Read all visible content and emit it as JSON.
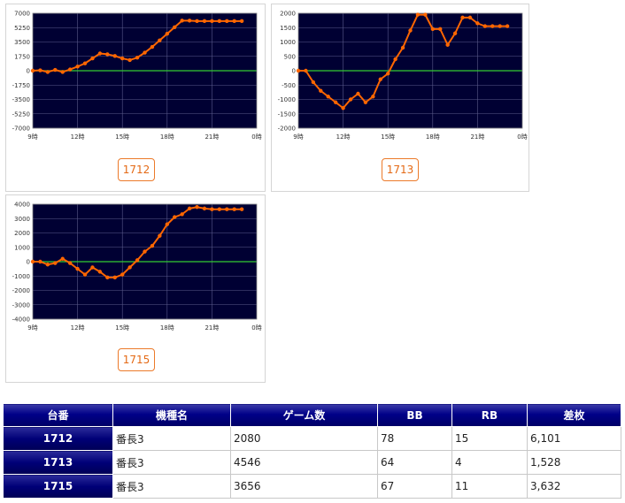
{
  "charts": [
    {
      "machine": "1712",
      "chart_data": {
        "type": "line",
        "x_ticks": [
          "9時",
          "12時",
          "15時",
          "18時",
          "21時",
          "0時"
        ],
        "y_ticks": [
          "7000",
          "5250",
          "3500",
          "1750",
          "0",
          "-1750",
          "-3500",
          "-5250",
          "-7000"
        ],
        "ylim": [
          -7000,
          7000
        ],
        "xlim": [
          9,
          24
        ],
        "grid": true,
        "x": [
          9.0,
          9.5,
          10.0,
          10.5,
          11.0,
          11.5,
          12.0,
          12.5,
          13.0,
          13.5,
          14.0,
          14.5,
          15.0,
          15.5,
          16.0,
          16.5,
          17.0,
          17.5,
          18.0,
          18.5,
          19.0,
          19.5,
          20.0,
          20.5,
          21.0,
          21.5,
          22.0,
          22.5,
          23.0
        ],
        "y": [
          0,
          50,
          -150,
          100,
          -150,
          150,
          500,
          900,
          1500,
          2100,
          2000,
          1800,
          1500,
          1300,
          1600,
          2200,
          2900,
          3700,
          4500,
          5300,
          6100,
          6100,
          6050,
          6050,
          6050,
          6050,
          6050,
          6050,
          6050
        ]
      }
    },
    {
      "machine": "1713",
      "chart_data": {
        "type": "line",
        "x_ticks": [
          "9時",
          "12時",
          "15時",
          "18時",
          "21時",
          "0時"
        ],
        "y_ticks": [
          "2000",
          "1500",
          "1000",
          "500",
          "0",
          "-500",
          "-1000",
          "-1500",
          "-2000"
        ],
        "ylim": [
          -2000,
          2000
        ],
        "xlim": [
          9,
          24
        ],
        "grid": true,
        "x": [
          9.0,
          9.5,
          10.0,
          10.5,
          11.0,
          11.5,
          12.0,
          12.5,
          13.0,
          13.5,
          14.0,
          14.5,
          15.0,
          15.5,
          16.0,
          16.5,
          17.0,
          17.5,
          18.0,
          18.5,
          19.0,
          19.5,
          20.0,
          20.5,
          21.0,
          21.5,
          22.0,
          22.5,
          23.0
        ],
        "y": [
          0,
          0,
          -400,
          -700,
          -900,
          -1100,
          -1300,
          -1000,
          -800,
          -1100,
          -900,
          -300,
          -100,
          400,
          800,
          1400,
          1950,
          1950,
          1450,
          1450,
          900,
          1300,
          1850,
          1850,
          1650,
          1550,
          1550,
          1550,
          1550
        ]
      }
    },
    {
      "machine": "1715",
      "chart_data": {
        "type": "line",
        "x_ticks": [
          "9時",
          "12時",
          "15時",
          "18時",
          "21時",
          "0時"
        ],
        "y_ticks": [
          "4000",
          "3000",
          "2000",
          "1000",
          "0",
          "-1000",
          "-2000",
          "-3000",
          "-4000"
        ],
        "ylim": [
          -4000,
          4000
        ],
        "xlim": [
          9,
          24
        ],
        "grid": true,
        "x": [
          9.0,
          9.5,
          10.0,
          10.5,
          11.0,
          11.5,
          12.0,
          12.5,
          13.0,
          13.5,
          14.0,
          14.5,
          15.0,
          15.5,
          16.0,
          16.5,
          17.0,
          17.5,
          18.0,
          18.5,
          19.0,
          19.5,
          20.0,
          20.5,
          21.0,
          21.5,
          22.0,
          22.5,
          23.0
        ],
        "y": [
          0,
          0,
          -200,
          -100,
          200,
          -100,
          -500,
          -900,
          -400,
          -700,
          -1100,
          -1100,
          -900,
          -400,
          100,
          700,
          1100,
          1800,
          2600,
          3100,
          3300,
          3700,
          3800,
          3700,
          3650,
          3650,
          3650,
          3650,
          3650
        ]
      }
    }
  ],
  "table": {
    "headers": [
      "台番",
      "機種名",
      "ゲーム数",
      "BB",
      "RB",
      "差枚"
    ],
    "rows": [
      [
        "1712",
        "番長3",
        "2080",
        "78",
        "15",
        "6,101"
      ],
      [
        "1713",
        "番長3",
        "4546",
        "64",
        "4",
        "1,528"
      ],
      [
        "1715",
        "番長3",
        "3656",
        "67",
        "11",
        "3,632"
      ]
    ]
  },
  "colors": {
    "plot_bg": "#000033",
    "grid": "#5a5a8a",
    "zero_line": "#33cc33",
    "series": "#ff6600",
    "button": "#ec7a2a",
    "header_bg": "#000088"
  }
}
